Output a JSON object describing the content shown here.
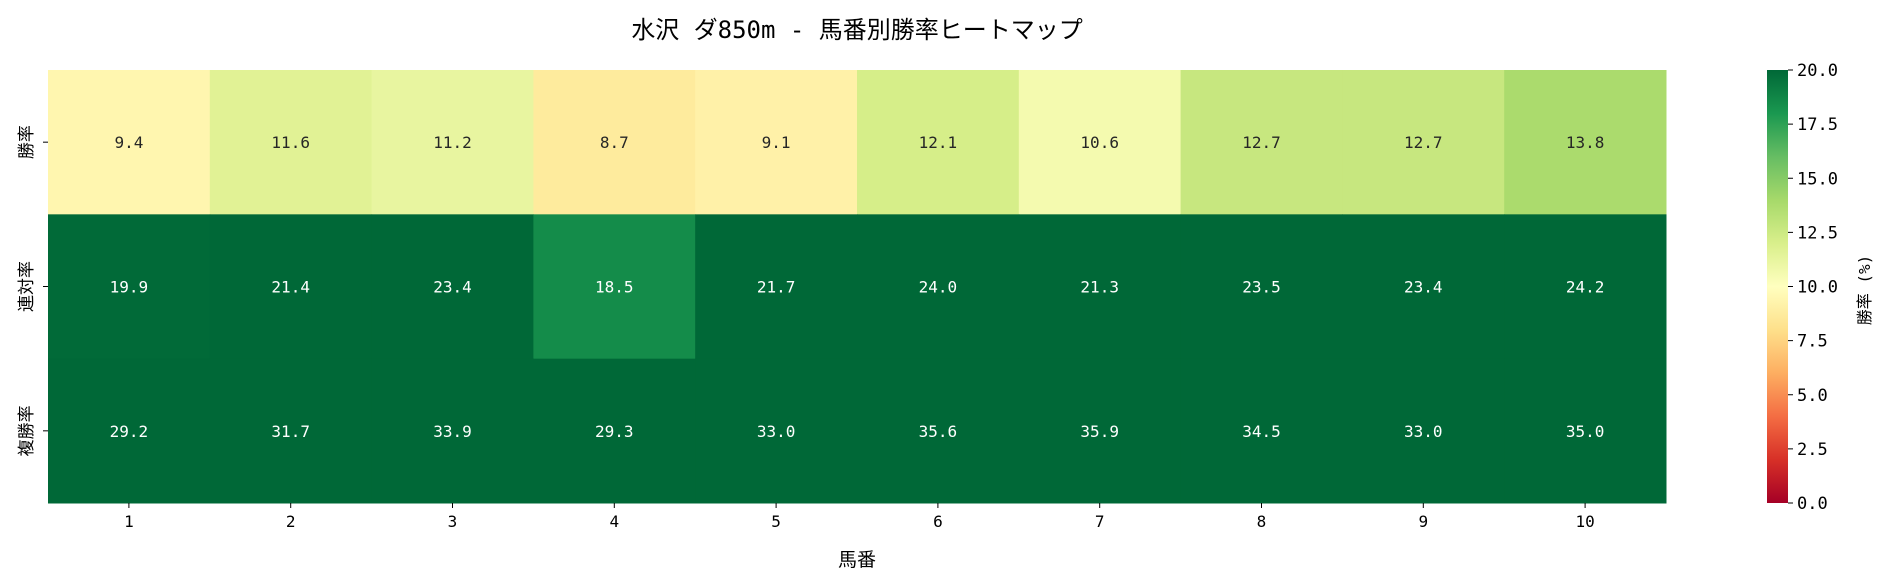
{
  "chart_data": {
    "type": "heatmap",
    "title": "水沢 ダ850m - 馬番別勝率ヒートマップ",
    "xlabel": "馬番",
    "ylabel": "",
    "x_categories": [
      "1",
      "2",
      "3",
      "4",
      "5",
      "6",
      "7",
      "8",
      "9",
      "10"
    ],
    "y_categories": [
      "勝率",
      "連対率",
      "複勝率"
    ],
    "values": [
      [
        9.4,
        11.6,
        11.2,
        8.7,
        9.1,
        12.1,
        10.6,
        12.7,
        12.7,
        13.8
      ],
      [
        19.9,
        21.4,
        23.4,
        18.5,
        21.7,
        24.0,
        21.3,
        23.5,
        23.4,
        24.2
      ],
      [
        29.2,
        31.7,
        33.9,
        29.3,
        33.0,
        35.6,
        35.9,
        34.5,
        33.0,
        35.0
      ]
    ],
    "colormap": "RdYlGn",
    "colorbar": {
      "label": "勝率 (%)",
      "range": [
        0,
        20
      ],
      "ticks": [
        "0.0",
        "2.5",
        "5.0",
        "7.5",
        "10.0",
        "12.5",
        "15.0",
        "17.5",
        "20.0"
      ]
    }
  }
}
